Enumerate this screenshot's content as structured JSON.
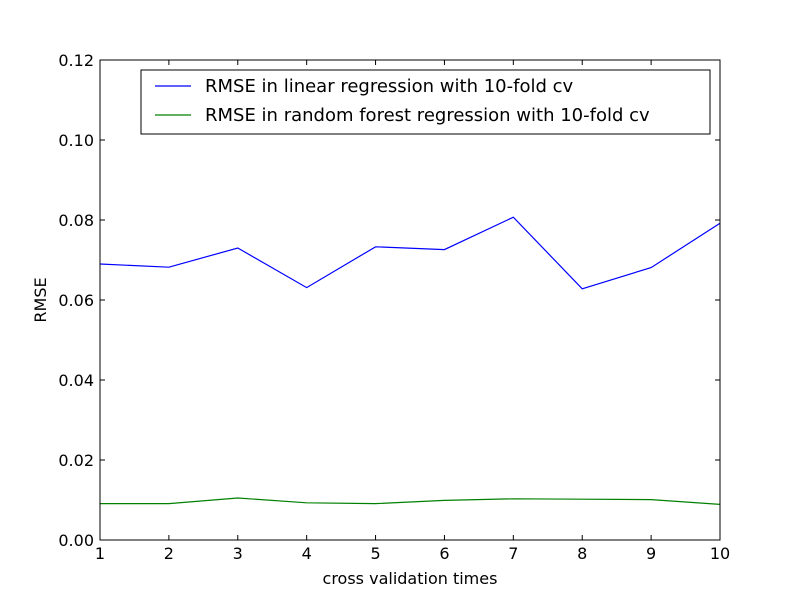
{
  "chart_data": {
    "type": "line",
    "title": "",
    "xlabel": "cross validation times",
    "ylabel": "RMSE",
    "xlim": [
      1,
      10
    ],
    "ylim": [
      0,
      0.12
    ],
    "x": [
      1,
      2,
      3,
      4,
      5,
      6,
      7,
      8,
      9,
      10
    ],
    "x_ticks": [
      "1",
      "2",
      "3",
      "4",
      "5",
      "6",
      "7",
      "8",
      "9",
      "10"
    ],
    "y_ticks": [
      "0.00",
      "0.02",
      "0.04",
      "0.06",
      "0.08",
      "0.10",
      "0.12"
    ],
    "y_tick_values": [
      0,
      0.02,
      0.04,
      0.06,
      0.08,
      0.1,
      0.12
    ],
    "grid": false,
    "legend_position": "top-right",
    "series": [
      {
        "name": "RMSE in linear regression with 10-fold cv",
        "color": "#0000ff",
        "values": [
          0.069,
          0.0682,
          0.073,
          0.0631,
          0.0733,
          0.0726,
          0.0807,
          0.0628,
          0.0681,
          0.0792
        ]
      },
      {
        "name": "RMSE in random forest regression with 10-fold cv",
        "color": "#008000",
        "values": [
          0.0091,
          0.0091,
          0.0105,
          0.0093,
          0.0091,
          0.0099,
          0.0103,
          0.0102,
          0.0101,
          0.0089
        ]
      }
    ]
  }
}
